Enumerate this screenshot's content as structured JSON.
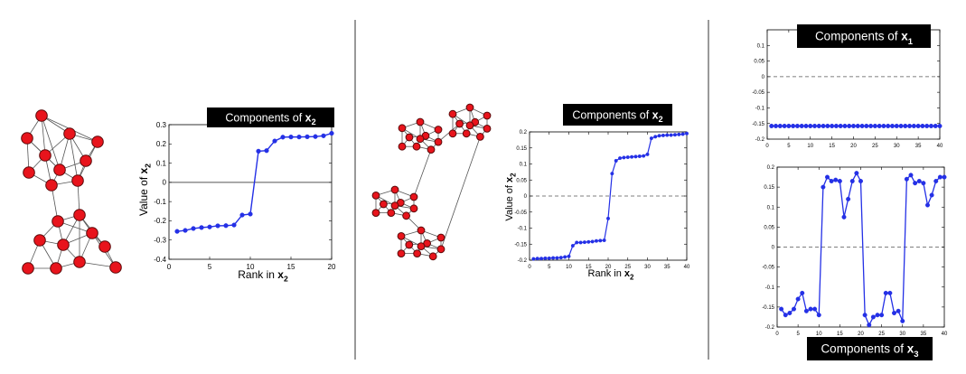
{
  "labels": {
    "panel1_badge_prefix": "Components of ",
    "panel2_badge_prefix": "Components of ",
    "panel3_top_badge_prefix": "Components of ",
    "panel3_bottom_badge_prefix": "Components of ",
    "rank_prefix": "Rank in ",
    "value_prefix": "Value of ",
    "var_x": "x",
    "sub_2": "2",
    "sub_1": "1",
    "sub_3": "3"
  },
  "colors": {
    "series": "#2430e6",
    "node_fill": "#e8141c",
    "node_stroke": "#5a0a0a",
    "edge": "#555555",
    "badge_bg": "#000000",
    "zero_line": "#555555"
  },
  "chart_data": [
    {
      "id": "chart1",
      "type": "line",
      "title": "Components of x2",
      "xlabel": "Rank in x2",
      "ylabel": "Value of x2",
      "xlim": [
        0,
        20
      ],
      "ylim": [
        -0.4,
        0.3
      ],
      "xticks": [
        0,
        5,
        10,
        15,
        20
      ],
      "yticks": [
        0.3,
        0.2,
        0.1,
        0,
        -0.1,
        -0.2,
        -0.3,
        -0.4
      ],
      "ytick_labels": [
        "0.3",
        "0.2",
        "0.1",
        "0",
        "-0.1",
        "-0.2",
        "-0.3",
        "-0.4"
      ],
      "zero_line": "solid",
      "series": [
        {
          "x": [
            1,
            2,
            3,
            4,
            5,
            6,
            7,
            8,
            9,
            10,
            11,
            12,
            13,
            14,
            15,
            16,
            17,
            18,
            19,
            20
          ],
          "values": [
            -0.255,
            -0.25,
            -0.24,
            -0.235,
            -0.232,
            -0.226,
            -0.225,
            -0.222,
            -0.17,
            -0.165,
            0.162,
            0.165,
            0.215,
            0.235,
            0.236,
            0.236,
            0.237,
            0.238,
            0.242,
            0.255
          ]
        }
      ]
    },
    {
      "id": "chart2",
      "type": "line",
      "title": "Components of x2",
      "xlabel": "Rank in x2",
      "ylabel": "Value of x2",
      "xlim": [
        0,
        40
      ],
      "ylim": [
        -0.2,
        0.2
      ],
      "xticks": [
        0,
        5,
        10,
        15,
        20,
        25,
        30,
        35,
        40
      ],
      "yticks": [
        0.2,
        0.15,
        0.1,
        0.05,
        0,
        -0.05,
        -0.1,
        -0.15,
        -0.2
      ],
      "ytick_labels": [
        "0.2",
        "0.15",
        "0.1",
        "0.05",
        "0",
        "-0.05",
        "-0.1",
        "-0.15",
        "-0.2"
      ],
      "zero_line": "dashed",
      "series": [
        {
          "x": [
            1,
            2,
            3,
            4,
            5,
            6,
            7,
            8,
            9,
            10,
            11,
            12,
            13,
            14,
            15,
            16,
            17,
            18,
            19,
            20,
            21,
            22,
            23,
            24,
            25,
            26,
            27,
            28,
            29,
            30,
            31,
            32,
            33,
            34,
            35,
            36,
            37,
            38,
            39,
            40
          ],
          "values": [
            -0.196,
            -0.195,
            -0.195,
            -0.194,
            -0.194,
            -0.193,
            -0.193,
            -0.192,
            -0.19,
            -0.188,
            -0.155,
            -0.145,
            -0.145,
            -0.144,
            -0.143,
            -0.142,
            -0.14,
            -0.139,
            -0.138,
            -0.07,
            0.07,
            0.11,
            0.118,
            0.12,
            0.121,
            0.122,
            0.123,
            0.124,
            0.125,
            0.13,
            0.18,
            0.185,
            0.188,
            0.189,
            0.19,
            0.19,
            0.191,
            0.192,
            0.193,
            0.195
          ]
        }
      ]
    },
    {
      "id": "chart3",
      "type": "line",
      "title": "Components of x1",
      "xlabel": "",
      "ylabel": "",
      "xlim": [
        0,
        40
      ],
      "ylim": [
        -0.2,
        0.15
      ],
      "xticks": [
        0,
        5,
        10,
        15,
        20,
        25,
        30,
        35,
        40
      ],
      "yticks": [
        0.1,
        0.05,
        0,
        -0.05,
        -0.1,
        -0.15,
        -0.2
      ],
      "ytick_labels": [
        "0.1",
        "0.05",
        "0",
        "-0.05",
        "-0.1",
        "-0.15",
        "-0.2"
      ],
      "zero_line": "dashed",
      "series": [
        {
          "x": [
            1,
            2,
            3,
            4,
            5,
            6,
            7,
            8,
            9,
            10,
            11,
            12,
            13,
            14,
            15,
            16,
            17,
            18,
            19,
            20,
            21,
            22,
            23,
            24,
            25,
            26,
            27,
            28,
            29,
            30,
            31,
            32,
            33,
            34,
            35,
            36,
            37,
            38,
            39,
            40
          ],
          "values": [
            -0.158,
            -0.158,
            -0.158,
            -0.158,
            -0.158,
            -0.158,
            -0.158,
            -0.158,
            -0.158,
            -0.158,
            -0.158,
            -0.158,
            -0.158,
            -0.158,
            -0.158,
            -0.158,
            -0.158,
            -0.158,
            -0.158,
            -0.158,
            -0.158,
            -0.158,
            -0.158,
            -0.158,
            -0.158,
            -0.158,
            -0.158,
            -0.158,
            -0.158,
            -0.158,
            -0.158,
            -0.158,
            -0.158,
            -0.158,
            -0.158,
            -0.158,
            -0.158,
            -0.158,
            -0.158,
            -0.158
          ]
        }
      ]
    },
    {
      "id": "chart4",
      "type": "line",
      "title": "Components of x3",
      "xlabel": "",
      "ylabel": "",
      "xlim": [
        0,
        40
      ],
      "ylim": [
        -0.2,
        0.2
      ],
      "xticks": [
        0,
        5,
        10,
        15,
        20,
        25,
        30,
        35,
        40
      ],
      "yticks": [
        0.2,
        0.15,
        0.1,
        0.05,
        0,
        -0.05,
        -0.1,
        -0.15,
        -0.2
      ],
      "ytick_labels": [
        "0.2",
        "0.15",
        "0.1",
        "0.05",
        "0",
        "-0.05",
        "-0.1",
        "-0.15",
        "-0.2"
      ],
      "zero_line": "dashed",
      "series": [
        {
          "x": [
            1,
            2,
            3,
            4,
            5,
            6,
            7,
            8,
            9,
            10,
            11,
            12,
            13,
            14,
            15,
            16,
            17,
            18,
            19,
            20,
            21,
            22,
            23,
            24,
            25,
            26,
            27,
            28,
            29,
            30,
            31,
            32,
            33,
            34,
            35,
            36,
            37,
            38,
            39,
            40
          ],
          "values": [
            -0.155,
            -0.17,
            -0.165,
            -0.155,
            -0.13,
            -0.115,
            -0.16,
            -0.155,
            -0.155,
            -0.17,
            0.15,
            0.175,
            0.165,
            0.168,
            0.165,
            0.075,
            0.12,
            0.165,
            0.185,
            0.165,
            -0.17,
            -0.195,
            -0.175,
            -0.17,
            -0.17,
            -0.115,
            -0.115,
            -0.165,
            -0.16,
            -0.185,
            0.17,
            0.18,
            0.16,
            0.165,
            0.16,
            0.105,
            0.13,
            0.165,
            0.175,
            0.175
          ]
        }
      ]
    }
  ]
}
